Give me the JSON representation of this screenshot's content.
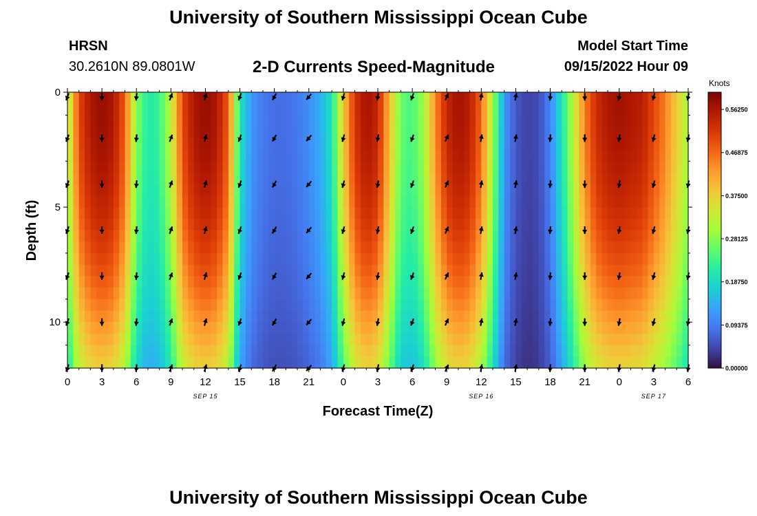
{
  "header": {
    "title": "University of Southern Mississippi Ocean Cube",
    "station_name": "HRSN",
    "station_coords": "30.2610N  89.0801W",
    "subtitle": "2-D Currents Speed-Magnitude",
    "model_start_label": "Model Start Time",
    "model_start_value": "09/15/2022 Hour 09"
  },
  "footer": {
    "title": "University of Southern Mississippi Ocean Cube"
  },
  "chart_data": {
    "type": "heatmap",
    "title": "2-D Currents Speed-Magnitude",
    "xlabel": "Forecast Time(Z)",
    "ylabel": "Depth (ft)",
    "x_tick_labels": [
      "0",
      "3",
      "6",
      "9",
      "12",
      "15",
      "18",
      "21",
      "0",
      "3",
      "6",
      "9",
      "12",
      "15",
      "18",
      "21",
      "0",
      "3",
      "6"
    ],
    "date_labels": [
      {
        "text": "SEP 15",
        "hour_index": 12
      },
      {
        "text": "SEP 16",
        "hour_index": 36
      },
      {
        "text": "SEP 17",
        "hour_index": 51
      }
    ],
    "x_range_hours": [
      0,
      54
    ],
    "y_ticks": [
      0,
      5,
      10
    ],
    "y_range": [
      0,
      12
    ],
    "colorbar": {
      "title": "Knots",
      "range": [
        0,
        0.6
      ],
      "tick_values": [
        0.0,
        0.09375,
        0.1875,
        0.28125,
        0.375,
        0.46875,
        0.5625
      ],
      "tick_labels": [
        "0.00000",
        "0.09375",
        "0.18750",
        "0.28125",
        "0.37500",
        "0.46875",
        "0.56250"
      ],
      "colors": [
        "#30123b",
        "#4145ab",
        "#4675ed",
        "#39a2fc",
        "#1bcfd4",
        "#24eca6",
        "#61fc6c",
        "#a4fc3b",
        "#d1e834",
        "#f3c63a",
        "#fe9b2d",
        "#f36315",
        "#d93806",
        "#b11901",
        "#7a0403"
      ]
    },
    "depths_ft": [
      0,
      2,
      4,
      6,
      8,
      10,
      12
    ],
    "speed_profile": {
      "description": "Surface speed (knots) by forecast hour",
      "hours": [
        0,
        1,
        2,
        3,
        4,
        5,
        6,
        7,
        8,
        9,
        10,
        11,
        12,
        13,
        14,
        15,
        16,
        17,
        18,
        19,
        20,
        21,
        22,
        23,
        24,
        25,
        26,
        27,
        28,
        29,
        30,
        31,
        32,
        33,
        34,
        35,
        36,
        37,
        38,
        39,
        40,
        41,
        42,
        43,
        44,
        45,
        46,
        47,
        48,
        49,
        50,
        51,
        52,
        53,
        54
      ],
      "values": [
        0.3,
        0.5,
        0.56,
        0.58,
        0.56,
        0.48,
        0.28,
        0.21,
        0.23,
        0.32,
        0.5,
        0.56,
        0.58,
        0.56,
        0.48,
        0.2,
        0.12,
        0.09,
        0.08,
        0.08,
        0.09,
        0.11,
        0.14,
        0.2,
        0.38,
        0.52,
        0.57,
        0.54,
        0.4,
        0.26,
        0.24,
        0.3,
        0.44,
        0.54,
        0.57,
        0.55,
        0.47,
        0.3,
        0.12,
        0.06,
        0.04,
        0.05,
        0.1,
        0.2,
        0.32,
        0.45,
        0.53,
        0.56,
        0.57,
        0.56,
        0.55,
        0.5,
        0.45,
        0.38,
        0.3
      ]
    },
    "vector_hours": [
      0,
      3,
      6,
      9,
      12,
      15,
      18,
      21,
      24,
      27,
      30,
      33,
      36,
      39,
      42,
      45,
      48,
      51,
      54
    ],
    "vector_depths_ft": [
      0.2,
      2,
      4,
      6,
      8,
      10,
      12
    ],
    "vector_directions_deg": [
      200,
      180,
      185,
      20,
      15,
      200,
      210,
      220,
      195,
      190,
      200,
      25,
      10,
      10,
      185,
      180,
      190,
      195,
      190
    ]
  }
}
